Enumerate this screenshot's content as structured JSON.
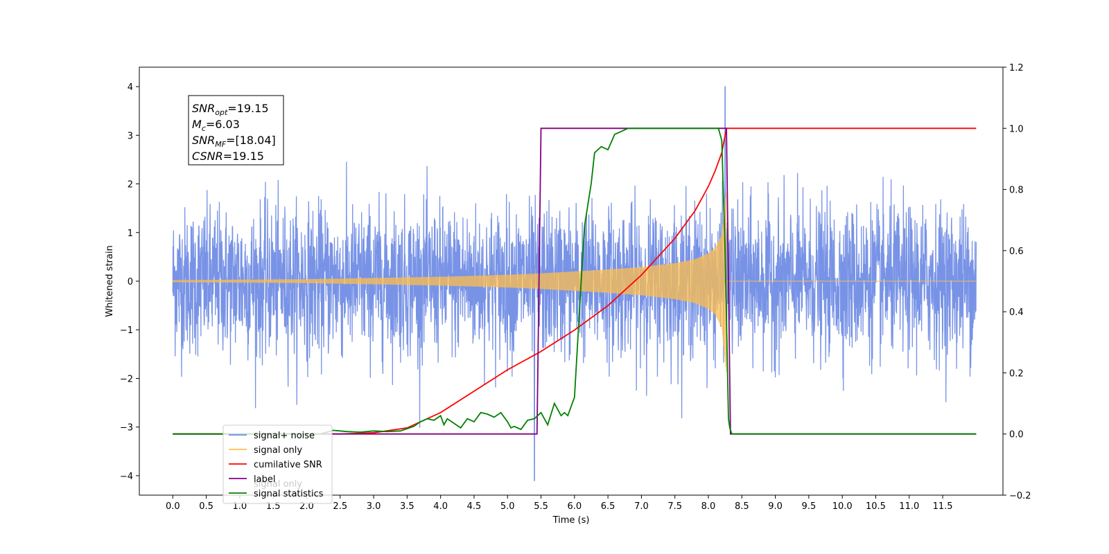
{
  "chart_data": {
    "type": "line",
    "xlabel": "Time (s)",
    "ylabel": "Whitened strain",
    "xlim": [
      -0.5,
      12.4
    ],
    "ylim_left": [
      -4.4,
      4.4
    ],
    "ylim_right": [
      -0.2,
      1.2
    ],
    "x_ticks": [
      0.0,
      0.5,
      1.0,
      1.5,
      2.0,
      2.5,
      3.0,
      3.5,
      4.0,
      4.5,
      5.0,
      5.5,
      6.0,
      6.5,
      7.0,
      7.5,
      8.0,
      8.5,
      9.0,
      9.5,
      10.0,
      10.5,
      11.0,
      11.5
    ],
    "x_tick_labels": [
      "0.0",
      "0.5",
      "1.0",
      "1.5",
      "2.0",
      "2.5",
      "3.0",
      "3.5",
      "4.0",
      "4.5",
      "5.0",
      "5.5",
      "6.0",
      "6.5",
      "7.0",
      "7.5",
      "8.0",
      "8.5",
      "9.0",
      "9.5",
      "10.0",
      "10.5",
      "11.0",
      "11.5"
    ],
    "y_left_ticks": [
      -4,
      -3,
      -2,
      -1,
      0,
      1,
      2,
      3,
      4
    ],
    "y_left_tick_labels": [
      "−4",
      "−3",
      "−2",
      "−1",
      "0",
      "1",
      "2",
      "3",
      "4"
    ],
    "y_right_ticks": [
      -0.2,
      0.0,
      0.2,
      0.4,
      0.6,
      0.8,
      1.0,
      1.2
    ],
    "y_right_tick_labels": [
      "−0.2",
      "0.0",
      "0.2",
      "0.4",
      "0.6",
      "0.8",
      "1.0",
      "1.2"
    ],
    "grid": false,
    "legend_position": "lower-left",
    "legend": [
      {
        "label": "signal+ noise",
        "color": "#6c8ae4"
      },
      {
        "label": "signal only",
        "color": "#ffbe4c"
      },
      {
        "label": "cumilative SNR",
        "color": "#ff0000"
      },
      {
        "label": "label",
        "color": "#800080"
      },
      {
        "label": "signal statistics",
        "color": "#008000"
      }
    ],
    "hidden_legend_text": "signal only",
    "annotation": {
      "lines": [
        {
          "sym": "SNR",
          "sub": "opt",
          "val": "=19.15"
        },
        {
          "sym": "M",
          "sub": "c",
          "val": "=6.03"
        },
        {
          "sym": "SNR",
          "sub": "MF",
          "val": "=[18.04]"
        },
        {
          "sym": "CSNR",
          "sub": "",
          "val": "=19.15"
        }
      ]
    },
    "series": [
      {
        "name": "signal+ noise",
        "axis": "left",
        "color": "#6c8ae4",
        "kind": "noise",
        "x_range": [
          0.0,
          12.0
        ],
        "amplitude_std": 0.75,
        "max_point": {
          "x": 8.25,
          "y": 4.0
        },
        "min_point": {
          "x": 5.4,
          "y": -4.1
        }
      },
      {
        "name": "signal only",
        "axis": "left",
        "color": "#ffbe4c",
        "kind": "chirp-envelope",
        "x_range": [
          0.0,
          12.0
        ],
        "merger_time": 8.27,
        "envelope": [
          [
            0.0,
            0.02
          ],
          [
            2.0,
            0.04
          ],
          [
            4.0,
            0.09
          ],
          [
            5.0,
            0.13
          ],
          [
            5.5,
            0.16
          ],
          [
            6.0,
            0.2
          ],
          [
            6.5,
            0.24
          ],
          [
            7.0,
            0.29
          ],
          [
            7.5,
            0.37
          ],
          [
            7.8,
            0.45
          ],
          [
            8.0,
            0.57
          ],
          [
            8.1,
            0.68
          ],
          [
            8.2,
            0.95
          ],
          [
            8.27,
            1.9
          ],
          [
            8.28,
            0.0
          ]
        ]
      },
      {
        "name": "cumilative SNR",
        "axis": "right",
        "color": "#ff0000",
        "x": [
          0.0,
          2.5,
          3.0,
          3.5,
          4.0,
          4.5,
          5.0,
          5.5,
          6.0,
          6.5,
          7.0,
          7.5,
          7.8,
          8.0,
          8.1,
          8.2,
          8.27,
          8.28,
          12.0
        ],
        "y": [
          0.0,
          0.0,
          0.004,
          0.02,
          0.07,
          0.14,
          0.21,
          0.27,
          0.34,
          0.42,
          0.52,
          0.64,
          0.73,
          0.81,
          0.86,
          0.92,
          1.0,
          1.0,
          1.0
        ]
      },
      {
        "name": "label",
        "axis": "right",
        "color": "#800080",
        "x": [
          0.0,
          5.44,
          5.5,
          8.27,
          8.33,
          12.0
        ],
        "y": [
          0.0,
          0.0,
          1.0,
          1.0,
          0.0,
          0.0
        ]
      },
      {
        "name": "signal statistics",
        "axis": "right",
        "color": "#008000",
        "x": [
          0.0,
          2.2,
          2.4,
          2.6,
          2.8,
          3.0,
          3.2,
          3.4,
          3.6,
          3.7,
          3.8,
          3.9,
          4.0,
          4.05,
          4.1,
          4.2,
          4.3,
          4.4,
          4.5,
          4.6,
          4.7,
          4.8,
          4.9,
          5.0,
          5.05,
          5.1,
          5.2,
          5.3,
          5.4,
          5.5,
          5.6,
          5.7,
          5.8,
          5.85,
          5.9,
          6.0,
          6.1,
          6.15,
          6.2,
          6.25,
          6.3,
          6.4,
          6.5,
          6.6,
          6.7,
          6.8,
          7.0,
          7.5,
          8.0,
          8.15,
          8.2,
          8.25,
          8.3,
          8.32,
          8.35,
          12.0
        ],
        "y": [
          0.0,
          0.0,
          0.012,
          0.008,
          0.006,
          0.01,
          0.008,
          0.01,
          0.025,
          0.04,
          0.05,
          0.045,
          0.06,
          0.03,
          0.05,
          0.035,
          0.02,
          0.05,
          0.04,
          0.07,
          0.065,
          0.055,
          0.07,
          0.04,
          0.02,
          0.025,
          0.015,
          0.045,
          0.05,
          0.07,
          0.03,
          0.1,
          0.06,
          0.07,
          0.06,
          0.12,
          0.5,
          0.68,
          0.75,
          0.82,
          0.92,
          0.94,
          0.93,
          0.98,
          0.99,
          1.0,
          1.0,
          1.0,
          1.0,
          1.0,
          0.96,
          0.6,
          0.05,
          0.02,
          0.0,
          0.0
        ]
      }
    ]
  }
}
